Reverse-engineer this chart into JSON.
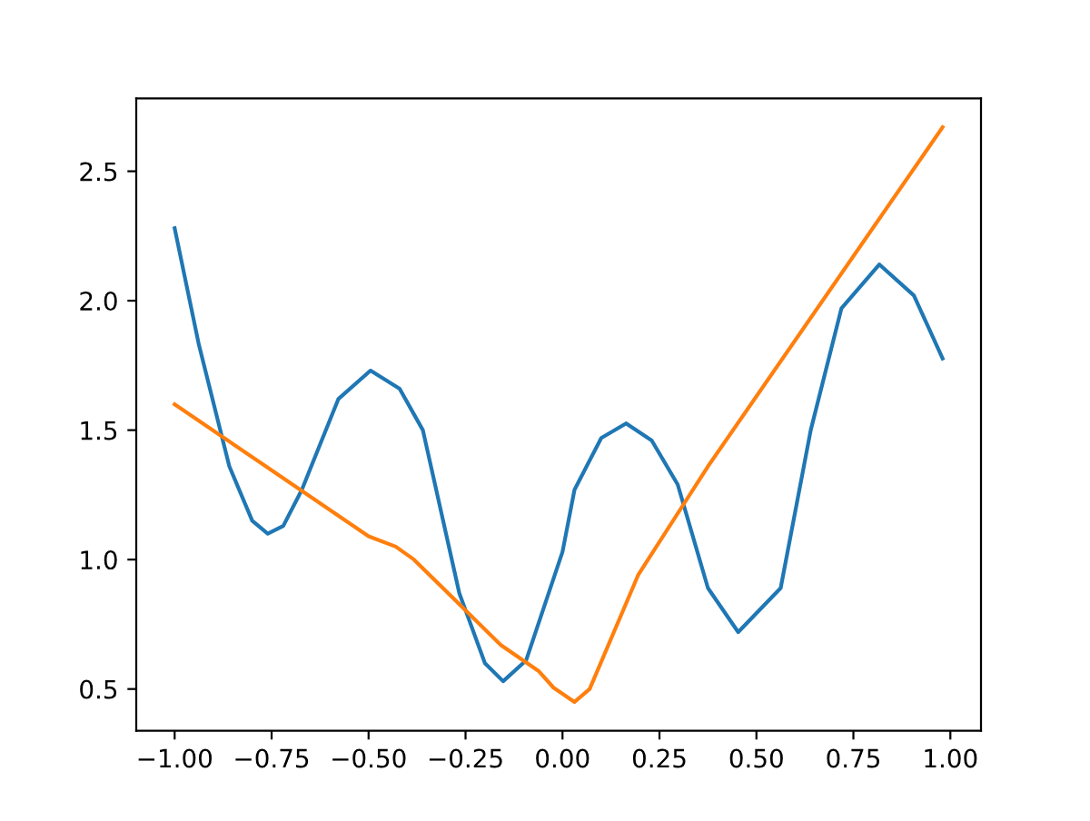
{
  "chart_data": {
    "type": "line",
    "series": [
      {
        "color": "#1f77b4",
        "x": [
          -1.0,
          -0.9375,
          -0.859,
          -0.8,
          -0.76,
          -0.72,
          -0.672,
          -0.578,
          -0.495,
          -0.42,
          -0.36,
          -0.266,
          -0.2,
          -0.153,
          -0.094,
          0.0,
          0.031,
          0.1,
          0.164,
          0.23,
          0.297,
          0.375,
          0.453,
          0.5625,
          0.64,
          0.719,
          0.817,
          0.906,
          0.98
        ],
        "values": [
          2.28,
          1.83,
          1.36,
          1.15,
          1.1,
          1.13,
          1.27,
          1.62,
          1.73,
          1.66,
          1.5,
          0.87,
          0.6,
          0.53,
          0.61,
          1.03,
          1.27,
          1.47,
          1.526,
          1.46,
          1.29,
          0.89,
          0.72,
          0.89,
          1.5,
          1.97,
          2.14,
          2.02,
          1.777
        ]
      },
      {
        "color": "#ff7f0e",
        "x": [
          -1.0,
          -0.5,
          -0.43,
          -0.383,
          -0.159,
          -0.062,
          -0.023,
          0.031,
          0.07,
          0.195,
          0.375,
          0.98
        ],
        "values": [
          1.6,
          1.09,
          1.05,
          1.0,
          0.67,
          0.57,
          0.505,
          0.45,
          0.5,
          0.94,
          1.36,
          2.67
        ]
      }
    ],
    "xlim": [
      -1.099,
      1.079
    ],
    "ylim": [
      0.339,
      2.781
    ],
    "xticks": [
      {
        "value": -1.0,
        "label": "−1.00"
      },
      {
        "value": -0.75,
        "label": "−0.75"
      },
      {
        "value": -0.5,
        "label": "−0.50"
      },
      {
        "value": -0.25,
        "label": "−0.25"
      },
      {
        "value": 0.0,
        "label": "0.00"
      },
      {
        "value": 0.25,
        "label": "0.25"
      },
      {
        "value": 0.5,
        "label": "0.50"
      },
      {
        "value": 0.75,
        "label": "0.75"
      },
      {
        "value": 1.0,
        "label": "1.00"
      }
    ],
    "yticks": [
      {
        "value": 0.5,
        "label": "0.5"
      },
      {
        "value": 1.0,
        "label": "1.0"
      },
      {
        "value": 1.5,
        "label": "1.5"
      },
      {
        "value": 2.0,
        "label": "2.0"
      },
      {
        "value": 2.5,
        "label": "2.5"
      }
    ],
    "grid": false,
    "legend": false
  }
}
